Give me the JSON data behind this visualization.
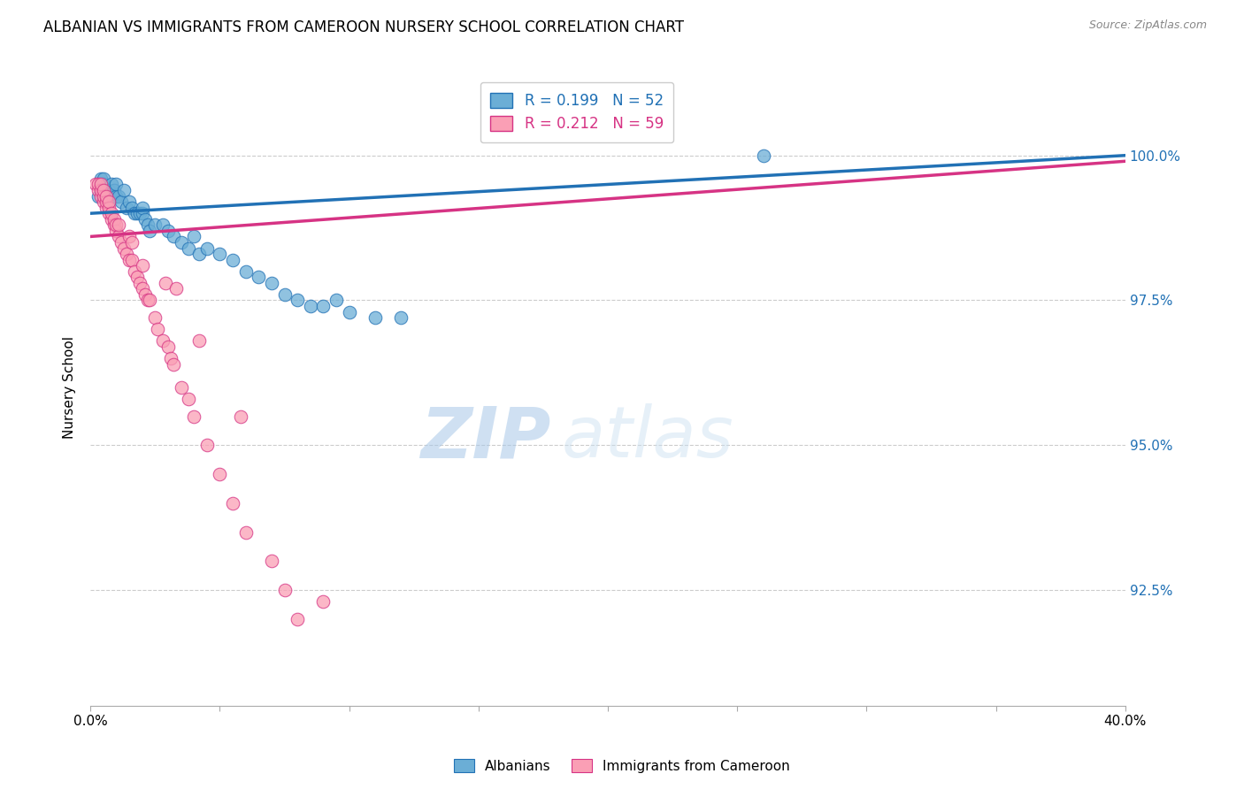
{
  "title": "ALBANIAN VS IMMIGRANTS FROM CAMEROON NURSERY SCHOOL CORRELATION CHART",
  "source": "Source: ZipAtlas.com",
  "ylabel": "Nursery School",
  "ytick_labels": [
    "100.0%",
    "97.5%",
    "95.0%",
    "92.5%"
  ],
  "ytick_values": [
    100.0,
    97.5,
    95.0,
    92.5
  ],
  "xmin": 0.0,
  "xmax": 40.0,
  "ymin": 90.5,
  "ymax": 101.5,
  "legend_blue_r": "R = 0.199",
  "legend_blue_n": "N = 52",
  "legend_pink_r": "R = 0.212",
  "legend_pink_n": "N = 59",
  "legend_blue_label": "Albanians",
  "legend_pink_label": "Immigrants from Cameroon",
  "blue_color": "#6baed6",
  "pink_color": "#fa9fb5",
  "line_blue_color": "#2171b5",
  "line_pink_color": "#d63384",
  "watermark_zip": "ZIP",
  "watermark_atlas": "atlas",
  "blue_line_x0": 0.0,
  "blue_line_x1": 40.0,
  "blue_line_y0": 99.0,
  "blue_line_y1": 100.0,
  "pink_line_x0": 0.0,
  "pink_line_x1": 40.0,
  "pink_line_y0": 98.6,
  "pink_line_y1": 99.9,
  "blue_scatter_x": [
    0.3,
    0.4,
    0.4,
    0.5,
    0.5,
    0.5,
    0.6,
    0.6,
    0.7,
    0.7,
    0.8,
    0.8,
    0.9,
    1.0,
    1.0,
    1.1,
    1.2,
    1.3,
    1.4,
    1.5,
    1.6,
    1.7,
    1.8,
    1.9,
    2.0,
    2.0,
    2.1,
    2.2,
    2.3,
    2.5,
    2.8,
    3.0,
    3.2,
    3.5,
    3.8,
    4.0,
    4.2,
    4.5,
    5.0,
    5.5,
    6.0,
    6.5,
    7.0,
    7.5,
    8.0,
    8.5,
    9.0,
    9.5,
    10.0,
    11.0,
    12.0,
    26.0
  ],
  "blue_scatter_y": [
    99.3,
    99.5,
    99.6,
    99.4,
    99.5,
    99.6,
    99.3,
    99.4,
    99.2,
    99.4,
    99.3,
    99.5,
    99.4,
    99.3,
    99.5,
    99.3,
    99.2,
    99.4,
    99.1,
    99.2,
    99.1,
    99.0,
    99.0,
    99.0,
    99.0,
    99.1,
    98.9,
    98.8,
    98.7,
    98.8,
    98.8,
    98.7,
    98.6,
    98.5,
    98.4,
    98.6,
    98.3,
    98.4,
    98.3,
    98.2,
    98.0,
    97.9,
    97.8,
    97.6,
    97.5,
    97.4,
    97.4,
    97.5,
    97.3,
    97.2,
    97.2,
    100.0
  ],
  "pink_scatter_x": [
    0.2,
    0.3,
    0.3,
    0.4,
    0.4,
    0.4,
    0.5,
    0.5,
    0.5,
    0.6,
    0.6,
    0.6,
    0.7,
    0.7,
    0.7,
    0.8,
    0.8,
    0.9,
    0.9,
    1.0,
    1.0,
    1.1,
    1.1,
    1.2,
    1.3,
    1.4,
    1.5,
    1.6,
    1.7,
    1.8,
    1.9,
    2.0,
    2.1,
    2.2,
    2.3,
    2.5,
    2.6,
    2.8,
    3.0,
    3.1,
    3.2,
    3.5,
    3.8,
    4.0,
    4.5,
    5.0,
    5.5,
    6.0,
    7.0,
    7.5,
    8.0,
    1.5,
    1.6,
    2.0,
    2.9,
    3.3,
    4.2,
    5.8,
    9.0
  ],
  "pink_scatter_y": [
    99.5,
    99.4,
    99.5,
    99.3,
    99.4,
    99.5,
    99.2,
    99.3,
    99.4,
    99.1,
    99.2,
    99.3,
    99.0,
    99.1,
    99.2,
    98.9,
    99.0,
    98.8,
    98.9,
    98.7,
    98.8,
    98.6,
    98.8,
    98.5,
    98.4,
    98.3,
    98.2,
    98.2,
    98.0,
    97.9,
    97.8,
    97.7,
    97.6,
    97.5,
    97.5,
    97.2,
    97.0,
    96.8,
    96.7,
    96.5,
    96.4,
    96.0,
    95.8,
    95.5,
    95.0,
    94.5,
    94.0,
    93.5,
    93.0,
    92.5,
    92.0,
    98.6,
    98.5,
    98.1,
    97.8,
    97.7,
    96.8,
    95.5,
    92.3
  ]
}
